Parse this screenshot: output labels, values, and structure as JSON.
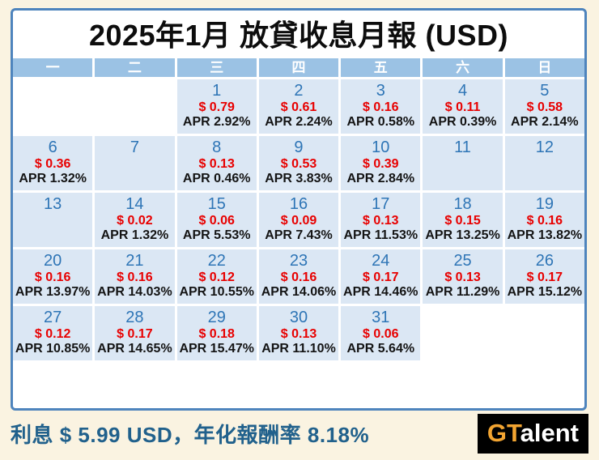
{
  "title": "2025年1月 放貸收息月報 (USD)",
  "colors": {
    "page_background": "#faf3e1",
    "panel_border": "#4e84bd",
    "header_fill": "#9bc2e4",
    "cell_fill": "#dbe7f4",
    "day_number": "#2e75b6",
    "amount_red": "#e80000",
    "footer_text": "#21618c",
    "logo_background": "#000000",
    "logo_gold": "#f2a431"
  },
  "calendar": {
    "weekday_headers": [
      "一",
      "二",
      "三",
      "四",
      "五",
      "六",
      "日"
    ],
    "weeks": [
      [
        null,
        null,
        {
          "day": "1",
          "amount": "$ 0.79",
          "apr": "APR 2.92%"
        },
        {
          "day": "2",
          "amount": "$ 0.61",
          "apr": "APR 2.24%"
        },
        {
          "day": "3",
          "amount": "$ 0.16",
          "apr": "APR 0.58%"
        },
        {
          "day": "4",
          "amount": "$ 0.11",
          "apr": "APR 0.39%"
        },
        {
          "day": "5",
          "amount": "$ 0.58",
          "apr": "APR 2.14%"
        }
      ],
      [
        {
          "day": "6",
          "amount": "$ 0.36",
          "apr": "APR 1.32%"
        },
        {
          "day": "7"
        },
        {
          "day": "8",
          "amount": "$ 0.13",
          "apr": "APR 0.46%"
        },
        {
          "day": "9",
          "amount": "$ 0.53",
          "apr": "APR 3.83%"
        },
        {
          "day": "10",
          "amount": "$ 0.39",
          "apr": "APR 2.84%"
        },
        {
          "day": "11"
        },
        {
          "day": "12"
        }
      ],
      [
        {
          "day": "13"
        },
        {
          "day": "14",
          "amount": "$ 0.02",
          "apr": "APR 1.32%"
        },
        {
          "day": "15",
          "amount": "$ 0.06",
          "apr": "APR 5.53%"
        },
        {
          "day": "16",
          "amount": "$ 0.09",
          "apr": "APR 7.43%"
        },
        {
          "day": "17",
          "amount": "$ 0.13",
          "apr": "APR 11.53%"
        },
        {
          "day": "18",
          "amount": "$ 0.15",
          "apr": "APR 13.25%"
        },
        {
          "day": "19",
          "amount": "$ 0.16",
          "apr": "APR 13.82%"
        }
      ],
      [
        {
          "day": "20",
          "amount": "$ 0.16",
          "apr": "APR 13.97%"
        },
        {
          "day": "21",
          "amount": "$ 0.16",
          "apr": "APR 14.03%"
        },
        {
          "day": "22",
          "amount": "$ 0.12",
          "apr": "APR 10.55%"
        },
        {
          "day": "23",
          "amount": "$ 0.16",
          "apr": "APR 14.06%"
        },
        {
          "day": "24",
          "amount": "$ 0.17",
          "apr": "APR 14.46%"
        },
        {
          "day": "25",
          "amount": "$ 0.13",
          "apr": "APR 11.29%"
        },
        {
          "day": "26",
          "amount": "$ 0.17",
          "apr": "APR 15.12%"
        }
      ],
      [
        {
          "day": "27",
          "amount": "$ 0.12",
          "apr": "APR 10.85%"
        },
        {
          "day": "28",
          "amount": "$ 0.17",
          "apr": "APR 14.65%"
        },
        {
          "day": "29",
          "amount": "$ 0.18",
          "apr": "APR 15.47%"
        },
        {
          "day": "30",
          "amount": "$ 0.13",
          "apr": "APR 11.10%"
        },
        {
          "day": "31",
          "amount": "$ 0.06",
          "apr": "APR 5.64%"
        },
        null,
        null
      ]
    ]
  },
  "footer": {
    "summary": "利息 $ 5.99 USD，年化報酬率 8.18%",
    "logo": {
      "prefix": "GT",
      "suffix": "alent"
    }
  }
}
